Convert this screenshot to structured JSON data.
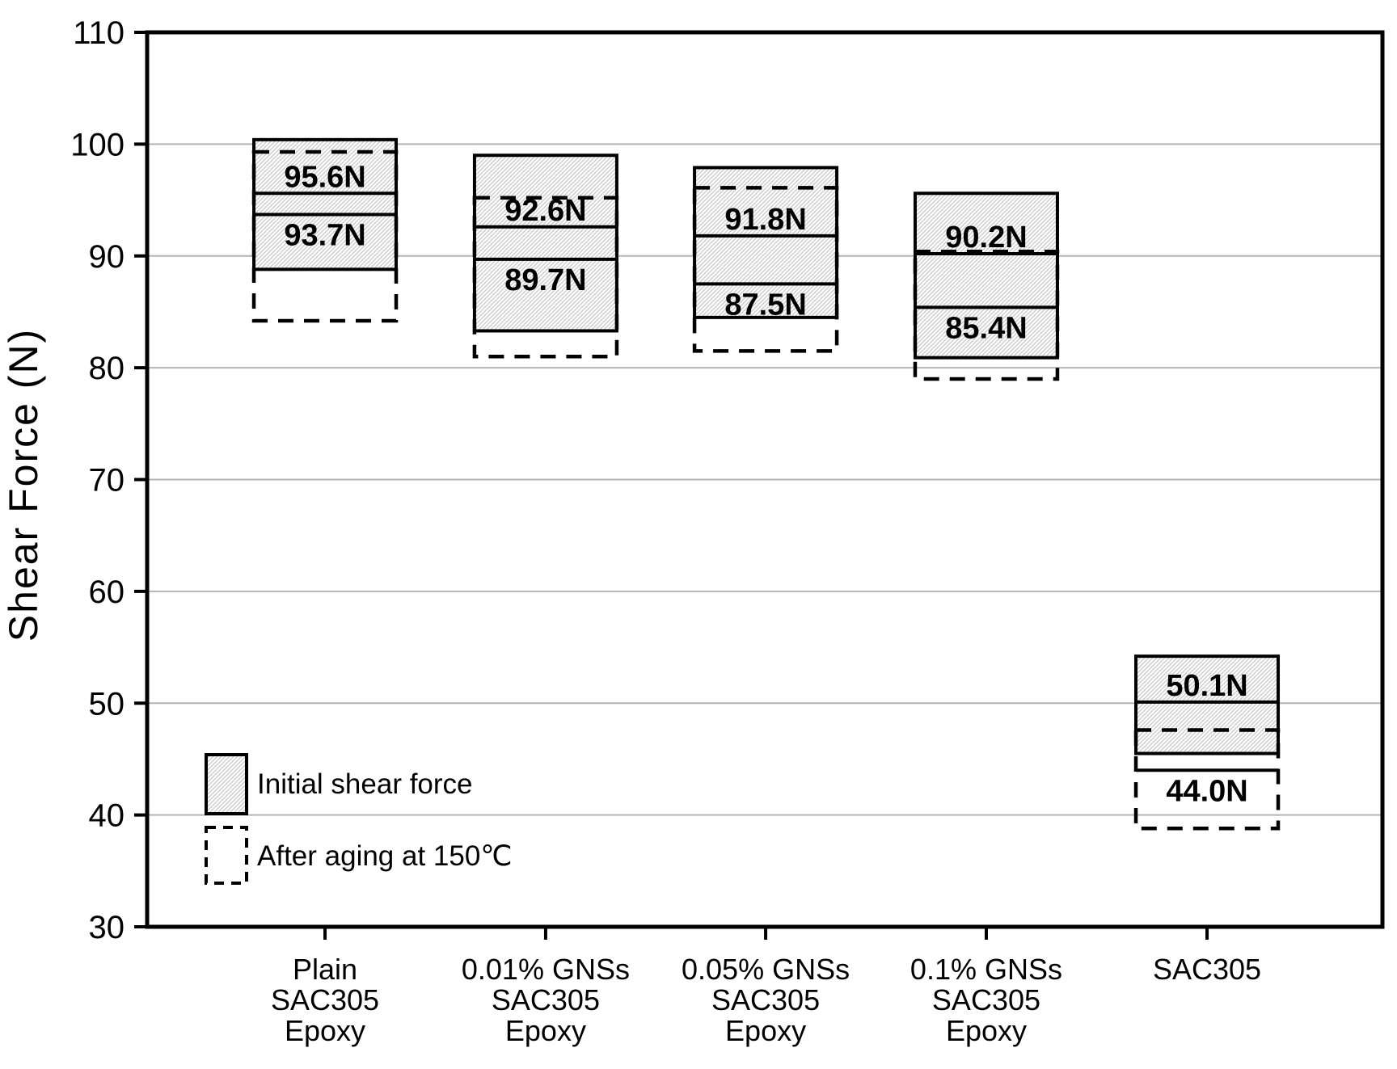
{
  "chart_data": {
    "type": "bar",
    "variant": "range-box-comparison",
    "title": "",
    "xlabel": "",
    "ylabel": "Shear Force (N)",
    "ylim": [
      30,
      110
    ],
    "ytick_step": 10,
    "ytick_labels": [
      "30",
      "40",
      "50",
      "60",
      "70",
      "80",
      "90",
      "100",
      "110"
    ],
    "grid": "horizontal-light-gray",
    "legend_position": "inside-bottom-left",
    "legend": [
      {
        "swatch": "hatched-box",
        "label": "Initial shear force"
      },
      {
        "swatch": "dashed-box",
        "label": "After aging at 150℃"
      }
    ],
    "groups": [
      {
        "category_lines": [
          "Plain",
          "SAC305",
          "Epoxy"
        ],
        "initial": {
          "min": 88.8,
          "max": 100.4,
          "mean": 95.6,
          "label": "95.6N"
        },
        "aged": {
          "min": 84.2,
          "max": 99.3,
          "mean": 93.7,
          "label": "93.7N"
        }
      },
      {
        "category_lines": [
          "0.01% GNSs",
          "SAC305",
          "Epoxy"
        ],
        "initial": {
          "min": 83.3,
          "max": 99.0,
          "mean": 92.6,
          "label": "92.6N"
        },
        "aged": {
          "min": 81.0,
          "max": 95.2,
          "mean": 89.7,
          "label": "89.7N"
        }
      },
      {
        "category_lines": [
          "0.05% GNSs",
          "SAC305",
          "Epoxy"
        ],
        "initial": {
          "min": 84.5,
          "max": 97.9,
          "mean": 91.8,
          "label": "91.8N"
        },
        "aged": {
          "min": 81.5,
          "max": 96.1,
          "mean": 87.5,
          "label": "87.5N"
        }
      },
      {
        "category_lines": [
          "0.1% GNSs",
          "SAC305",
          "Epoxy"
        ],
        "initial": {
          "min": 80.9,
          "max": 95.6,
          "mean": 90.2,
          "label": "90.2N"
        },
        "aged": {
          "min": 79.0,
          "max": 90.4,
          "mean": 85.4,
          "label": "85.4N"
        }
      },
      {
        "category_lines": [
          "SAC305"
        ],
        "initial": {
          "min": 45.5,
          "max": 54.2,
          "mean": 50.1,
          "label": "50.1N"
        },
        "aged": {
          "min": 38.8,
          "max": 47.6,
          "mean": 44.0,
          "label": "44.0N"
        }
      }
    ],
    "colors": {
      "line": "#000000",
      "grid": "#b4b4b4",
      "hatch_line": "#c3c3c3",
      "hatch_bg": "#fcfcfc",
      "background": "#ffffff",
      "text": "#000000"
    }
  }
}
